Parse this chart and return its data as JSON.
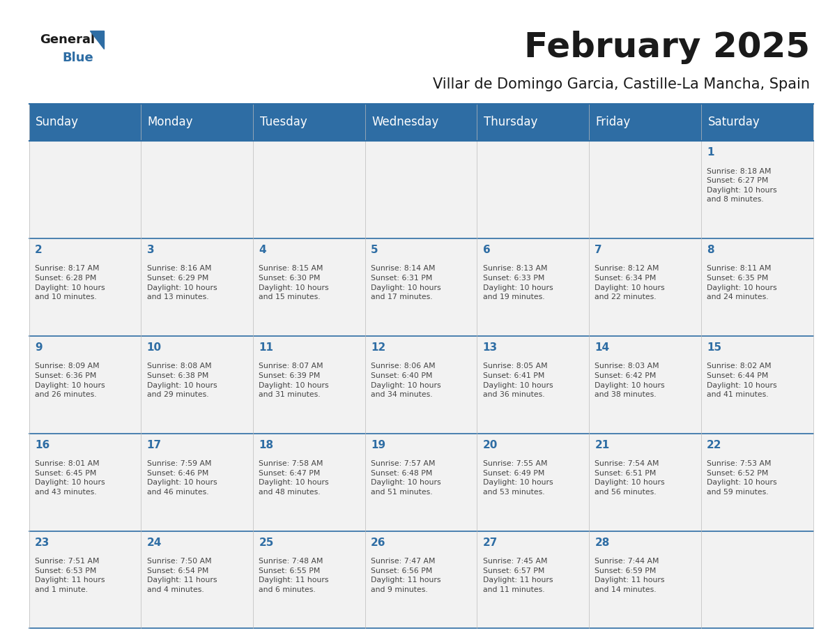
{
  "title": "February 2025",
  "subtitle": "Villar de Domingo Garcia, Castille-La Mancha, Spain",
  "header_bg_color": "#2E6DA4",
  "header_text_color": "#FFFFFF",
  "cell_bg_color": "#F2F2F2",
  "day_number_color": "#2E6DA4",
  "text_color": "#444444",
  "line_color": "#2E6DA4",
  "days_of_week": [
    "Sunday",
    "Monday",
    "Tuesday",
    "Wednesday",
    "Thursday",
    "Friday",
    "Saturday"
  ],
  "weeks": [
    [
      {
        "day": 0,
        "text": ""
      },
      {
        "day": 0,
        "text": ""
      },
      {
        "day": 0,
        "text": ""
      },
      {
        "day": 0,
        "text": ""
      },
      {
        "day": 0,
        "text": ""
      },
      {
        "day": 0,
        "text": ""
      },
      {
        "day": 1,
        "text": "Sunrise: 8:18 AM\nSunset: 6:27 PM\nDaylight: 10 hours\nand 8 minutes."
      }
    ],
    [
      {
        "day": 2,
        "text": "Sunrise: 8:17 AM\nSunset: 6:28 PM\nDaylight: 10 hours\nand 10 minutes."
      },
      {
        "day": 3,
        "text": "Sunrise: 8:16 AM\nSunset: 6:29 PM\nDaylight: 10 hours\nand 13 minutes."
      },
      {
        "day": 4,
        "text": "Sunrise: 8:15 AM\nSunset: 6:30 PM\nDaylight: 10 hours\nand 15 minutes."
      },
      {
        "day": 5,
        "text": "Sunrise: 8:14 AM\nSunset: 6:31 PM\nDaylight: 10 hours\nand 17 minutes."
      },
      {
        "day": 6,
        "text": "Sunrise: 8:13 AM\nSunset: 6:33 PM\nDaylight: 10 hours\nand 19 minutes."
      },
      {
        "day": 7,
        "text": "Sunrise: 8:12 AM\nSunset: 6:34 PM\nDaylight: 10 hours\nand 22 minutes."
      },
      {
        "day": 8,
        "text": "Sunrise: 8:11 AM\nSunset: 6:35 PM\nDaylight: 10 hours\nand 24 minutes."
      }
    ],
    [
      {
        "day": 9,
        "text": "Sunrise: 8:09 AM\nSunset: 6:36 PM\nDaylight: 10 hours\nand 26 minutes."
      },
      {
        "day": 10,
        "text": "Sunrise: 8:08 AM\nSunset: 6:38 PM\nDaylight: 10 hours\nand 29 minutes."
      },
      {
        "day": 11,
        "text": "Sunrise: 8:07 AM\nSunset: 6:39 PM\nDaylight: 10 hours\nand 31 minutes."
      },
      {
        "day": 12,
        "text": "Sunrise: 8:06 AM\nSunset: 6:40 PM\nDaylight: 10 hours\nand 34 minutes."
      },
      {
        "day": 13,
        "text": "Sunrise: 8:05 AM\nSunset: 6:41 PM\nDaylight: 10 hours\nand 36 minutes."
      },
      {
        "day": 14,
        "text": "Sunrise: 8:03 AM\nSunset: 6:42 PM\nDaylight: 10 hours\nand 38 minutes."
      },
      {
        "day": 15,
        "text": "Sunrise: 8:02 AM\nSunset: 6:44 PM\nDaylight: 10 hours\nand 41 minutes."
      }
    ],
    [
      {
        "day": 16,
        "text": "Sunrise: 8:01 AM\nSunset: 6:45 PM\nDaylight: 10 hours\nand 43 minutes."
      },
      {
        "day": 17,
        "text": "Sunrise: 7:59 AM\nSunset: 6:46 PM\nDaylight: 10 hours\nand 46 minutes."
      },
      {
        "day": 18,
        "text": "Sunrise: 7:58 AM\nSunset: 6:47 PM\nDaylight: 10 hours\nand 48 minutes."
      },
      {
        "day": 19,
        "text": "Sunrise: 7:57 AM\nSunset: 6:48 PM\nDaylight: 10 hours\nand 51 minutes."
      },
      {
        "day": 20,
        "text": "Sunrise: 7:55 AM\nSunset: 6:49 PM\nDaylight: 10 hours\nand 53 minutes."
      },
      {
        "day": 21,
        "text": "Sunrise: 7:54 AM\nSunset: 6:51 PM\nDaylight: 10 hours\nand 56 minutes."
      },
      {
        "day": 22,
        "text": "Sunrise: 7:53 AM\nSunset: 6:52 PM\nDaylight: 10 hours\nand 59 minutes."
      }
    ],
    [
      {
        "day": 23,
        "text": "Sunrise: 7:51 AM\nSunset: 6:53 PM\nDaylight: 11 hours\nand 1 minute."
      },
      {
        "day": 24,
        "text": "Sunrise: 7:50 AM\nSunset: 6:54 PM\nDaylight: 11 hours\nand 4 minutes."
      },
      {
        "day": 25,
        "text": "Sunrise: 7:48 AM\nSunset: 6:55 PM\nDaylight: 11 hours\nand 6 minutes."
      },
      {
        "day": 26,
        "text": "Sunrise: 7:47 AM\nSunset: 6:56 PM\nDaylight: 11 hours\nand 9 minutes."
      },
      {
        "day": 27,
        "text": "Sunrise: 7:45 AM\nSunset: 6:57 PM\nDaylight: 11 hours\nand 11 minutes."
      },
      {
        "day": 28,
        "text": "Sunrise: 7:44 AM\nSunset: 6:59 PM\nDaylight: 11 hours\nand 14 minutes."
      },
      {
        "day": 0,
        "text": ""
      }
    ]
  ]
}
